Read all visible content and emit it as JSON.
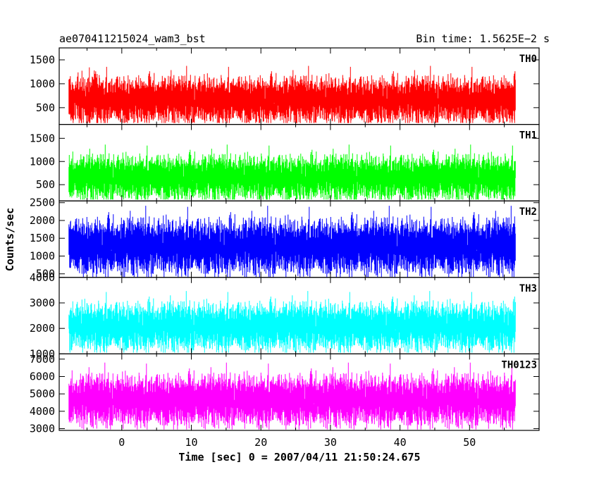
{
  "header": {
    "left_title": "ae070411215024_wam3_bst",
    "right_title": "Bin time: 1.5625E−2 s"
  },
  "chart_data": {
    "type": "line",
    "title": "ae070411215024_wam3_bst",
    "subtitle": "Bin time: 1.5625E−2 s",
    "xlabel": "Time [sec] 0 = 2007/04/11 21:50:24.675",
    "ylabel": "Counts/sec",
    "xlim": [
      -9,
      60
    ],
    "data_x_range": [
      -7.6,
      56.6
    ],
    "x_ticks": [
      0,
      10,
      20,
      30,
      40,
      50
    ],
    "bin_time_s": 0.015625,
    "panels": [
      {
        "name": "TH0",
        "color": "#ff0000",
        "ylim": [
          150,
          1750
        ],
        "y_ticks": [
          500,
          1000,
          1500
        ],
        "mean": 650,
        "sd": 230,
        "min": 180,
        "max": 1750
      },
      {
        "name": "TH1",
        "color": "#00ff00",
        "ylim": [
          150,
          1800
        ],
        "y_ticks": [
          500,
          1000,
          1500
        ],
        "mean": 640,
        "sd": 230,
        "min": 180,
        "max": 1800
      },
      {
        "name": "TH2",
        "color": "#0000ff",
        "ylim": [
          400,
          2550
        ],
        "y_ticks": [
          500,
          1000,
          1500,
          2000,
          2500
        ],
        "mean": 1250,
        "sd": 370,
        "min": 400,
        "max": 2550
      },
      {
        "name": "TH3",
        "color": "#00ffff",
        "ylim": [
          1000,
          4000
        ],
        "y_ticks": [
          1000,
          2000,
          3000,
          4000
        ],
        "mean": 2050,
        "sd": 450,
        "min": 1050,
        "max": 4000
      },
      {
        "name": "TH0123",
        "color": "#ff00ff",
        "ylim": [
          2900,
          7300
        ],
        "y_ticks": [
          3000,
          4000,
          5000,
          6000,
          7000
        ],
        "mean": 4600,
        "sd": 700,
        "min": 2950,
        "max": 7300
      }
    ]
  }
}
